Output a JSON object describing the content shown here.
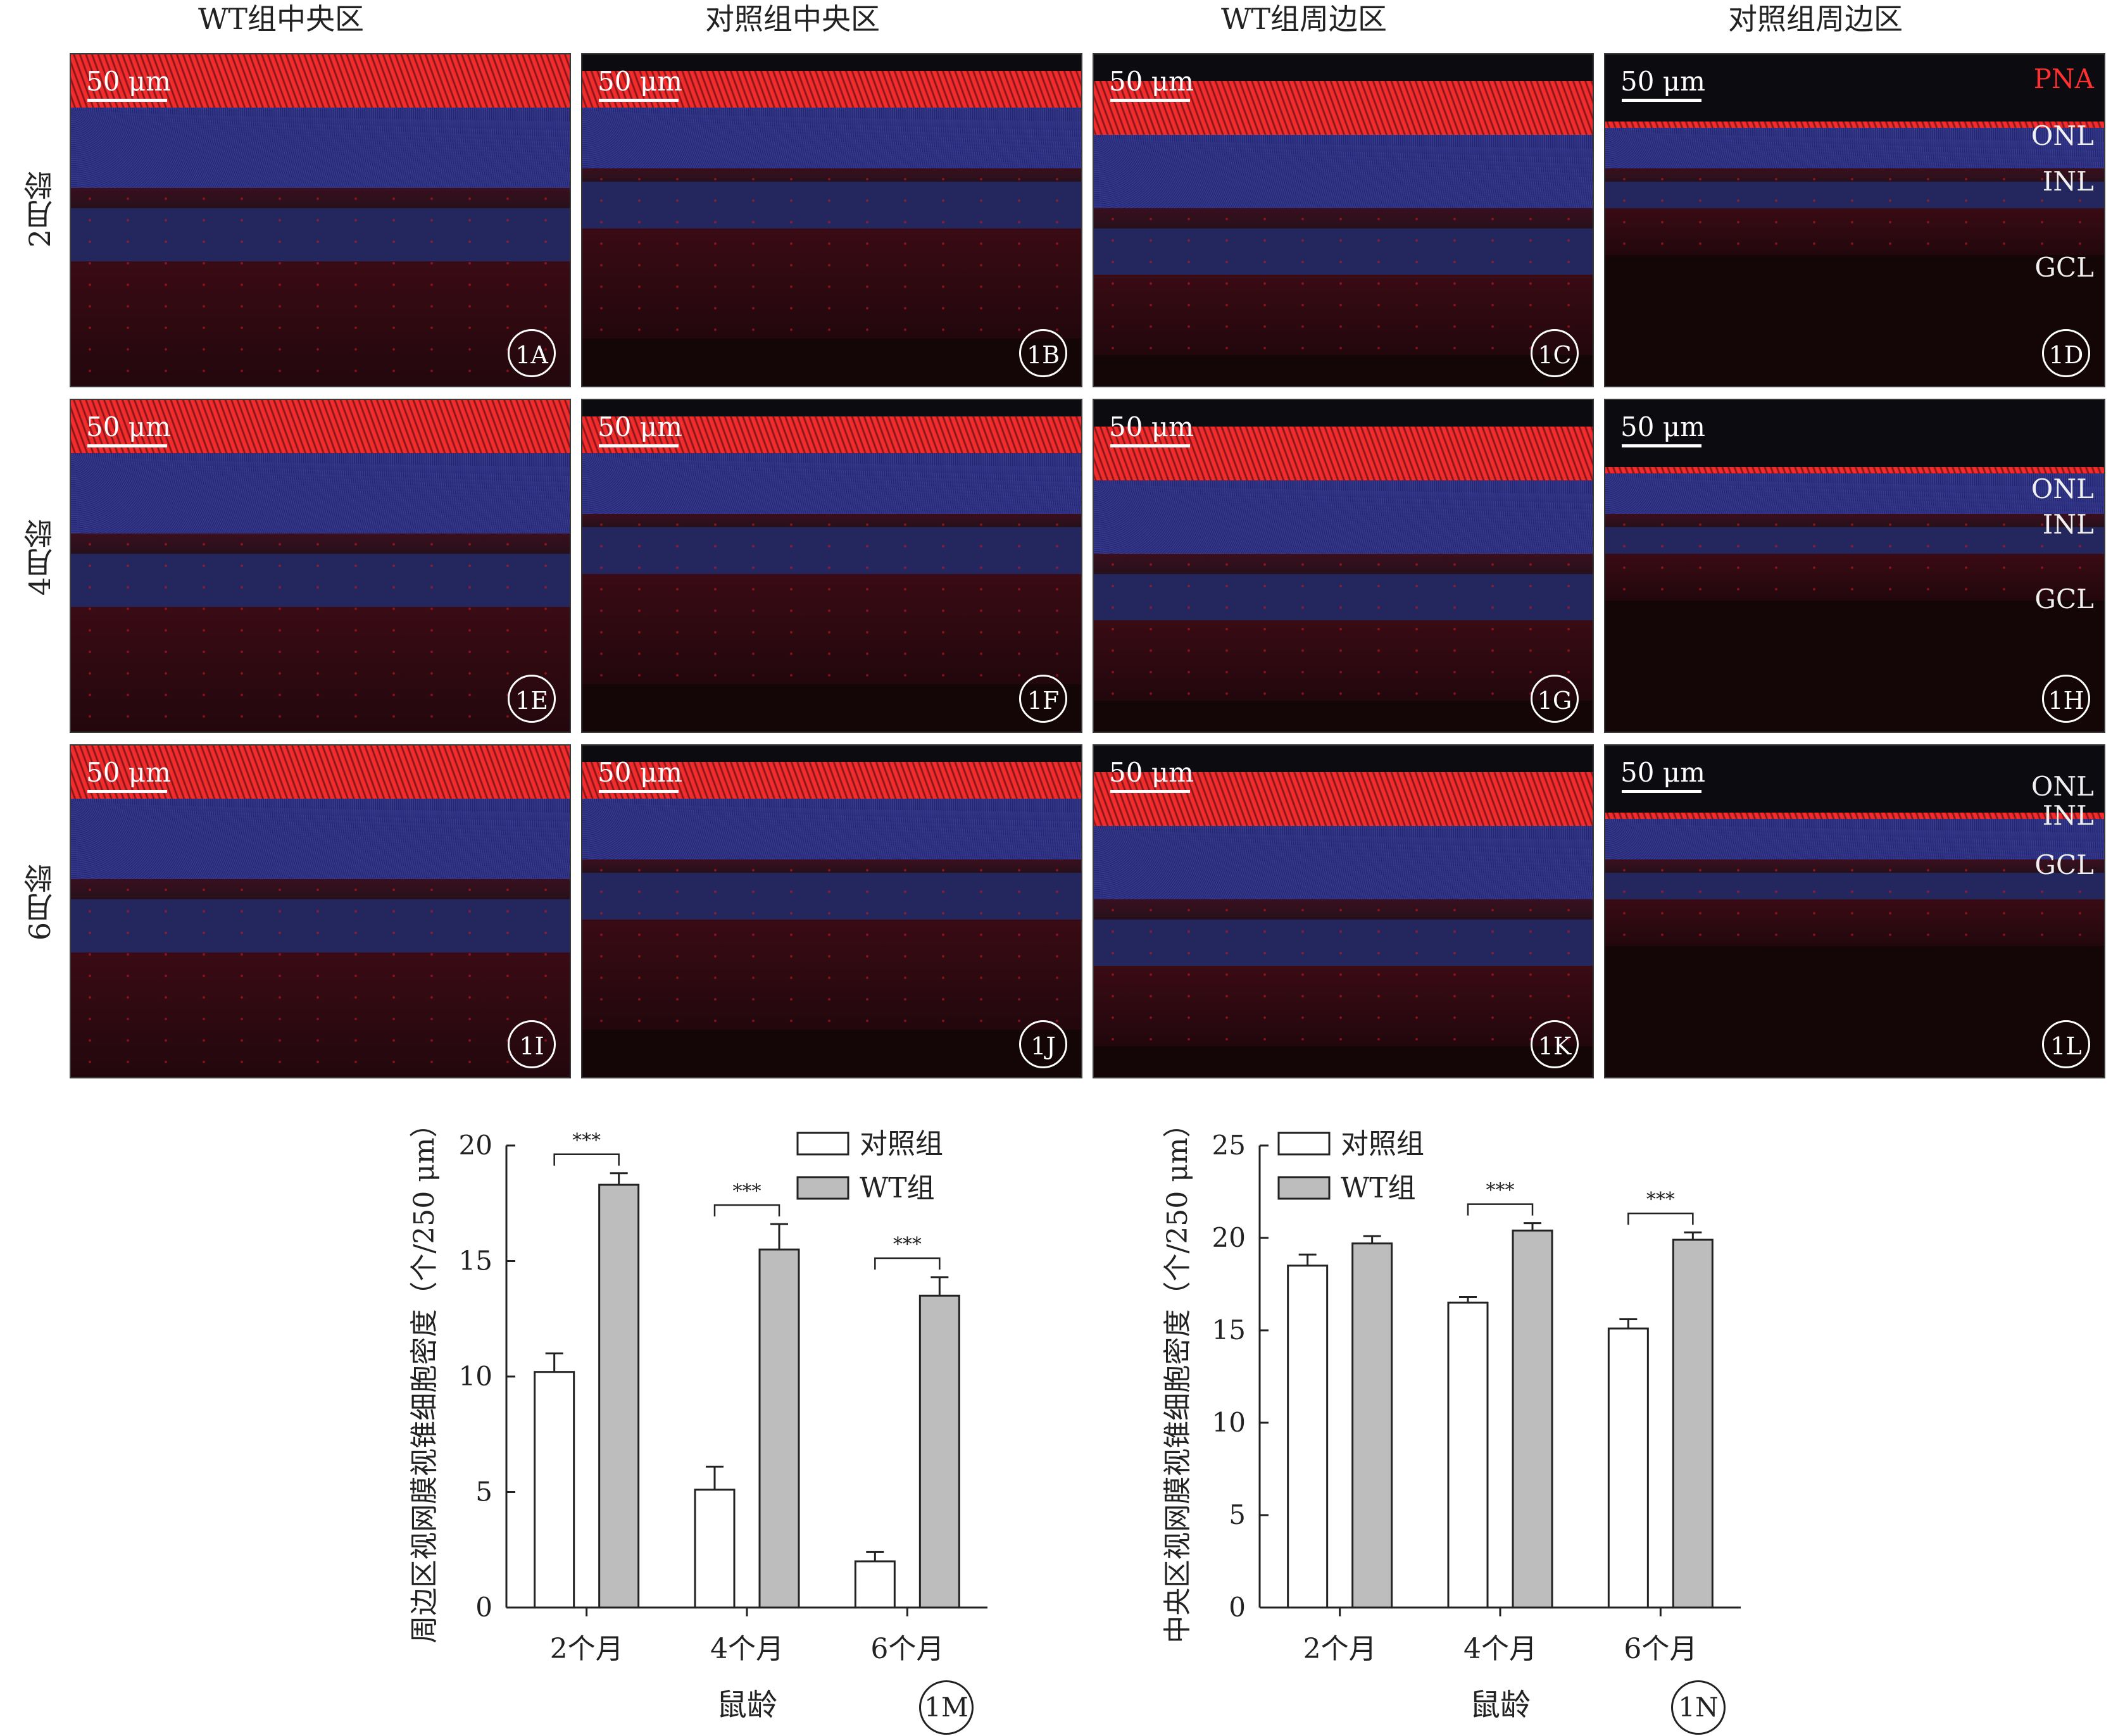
{
  "column_headers": [
    "WT组中央区",
    "对照组中央区",
    "WT组周边区",
    "对照组周边区"
  ],
  "row_labels": [
    "2月龄",
    "4月龄",
    "6月龄"
  ],
  "scale_bar": "50 μm",
  "panels": [
    {
      "id": "1A"
    },
    {
      "id": "1B"
    },
    {
      "id": "1C"
    },
    {
      "id": "1D"
    },
    {
      "id": "1E"
    },
    {
      "id": "1F"
    },
    {
      "id": "1G"
    },
    {
      "id": "1H"
    },
    {
      "id": "1I"
    },
    {
      "id": "1J"
    },
    {
      "id": "1K"
    },
    {
      "id": "1L"
    }
  ],
  "layer_labels": {
    "row1": [
      "PNA",
      "ONL",
      "INL",
      "GCL"
    ],
    "row2": [
      "ONL",
      "INL",
      "GCL"
    ],
    "row3": [
      "ONL",
      "INL",
      "GCL"
    ]
  },
  "colors": {
    "pna": "#ff3030",
    "nuclei": "#2c2f7e",
    "control_bar": "#ffffff",
    "wt_bar": "#bdbdbd"
  },
  "chart_data": [
    {
      "id": "1M",
      "type": "bar",
      "categories": [
        "2个月",
        "4个月",
        "6个月"
      ],
      "series": [
        {
          "name": "对照组",
          "values": [
            10.2,
            5.1,
            2.0
          ],
          "errors": [
            0.8,
            1.0,
            0.4
          ]
        },
        {
          "name": "WT组",
          "values": [
            18.3,
            15.5,
            13.5
          ],
          "errors": [
            0.5,
            1.1,
            0.8
          ]
        }
      ],
      "significance": [
        "***",
        "***",
        "***"
      ],
      "xlabel": "鼠龄",
      "ylabel": "周边区视网膜视锥细胞密度（个/250 μm）",
      "ylim": [
        0,
        20
      ],
      "yticks": [
        "0",
        "5",
        "10",
        "15",
        "20"
      ],
      "legend_position": "top-right"
    },
    {
      "id": "1N",
      "type": "bar",
      "categories": [
        "2个月",
        "4个月",
        "6个月"
      ],
      "series": [
        {
          "name": "对照组",
          "values": [
            18.5,
            16.5,
            15.1
          ],
          "errors": [
            0.6,
            0.3,
            0.5
          ]
        },
        {
          "name": "WT组",
          "values": [
            19.7,
            20.4,
            19.9
          ],
          "errors": [
            0.4,
            0.4,
            0.4
          ]
        }
      ],
      "significance": [
        "",
        "***",
        "***"
      ],
      "xlabel": "鼠龄",
      "ylabel": "中央区视网膜视锥细胞密度（个/250 μm）",
      "ylim": [
        0,
        25
      ],
      "yticks": [
        "0",
        "5",
        "10",
        "15",
        "20",
        "25"
      ],
      "legend_position": "top-left"
    }
  ]
}
